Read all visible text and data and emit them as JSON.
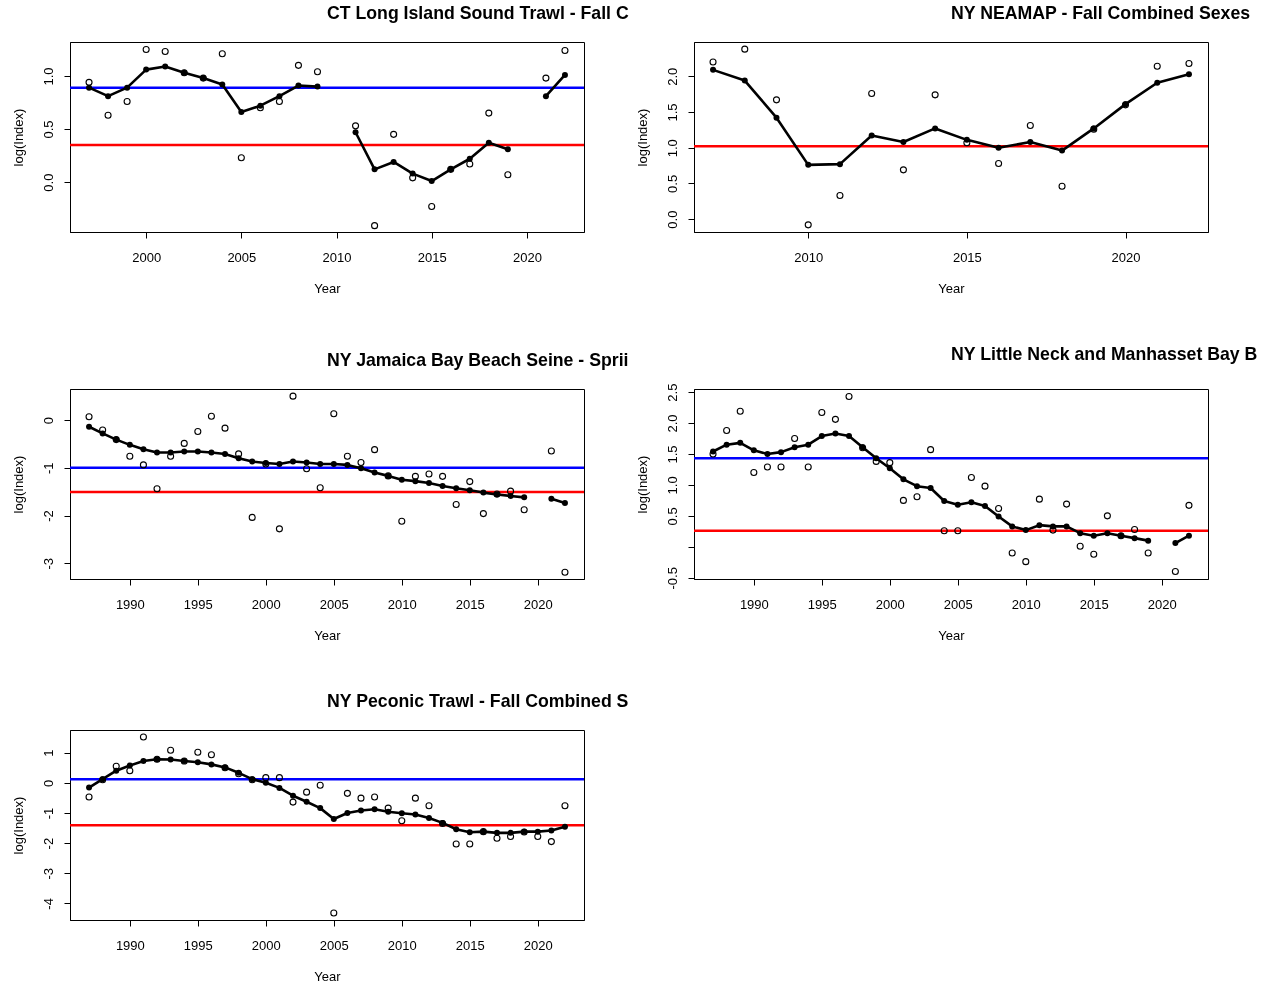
{
  "chart_data": [
    {
      "type": "line",
      "title": "CT Long Island Sound Trawl - Fall C",
      "xlabel": "Year",
      "ylabel": "log(Index)",
      "marker": "circle",
      "x": [
        1997,
        1998,
        1999,
        2000,
        2001,
        2002,
        2003,
        2004,
        2005,
        2006,
        2007,
        2008,
        2009,
        2010,
        2011,
        2012,
        2013,
        2014,
        2015,
        2016,
        2017,
        2018,
        2019,
        2020,
        2021,
        2022
      ],
      "series": [
        {
          "type": "scatter",
          "color": "#000000",
          "values": [
            0.94,
            0.63,
            0.76,
            1.25,
            1.23,
            1.03,
            0.98,
            1.21,
            0.23,
            0.7,
            0.76,
            1.1,
            1.04,
            null,
            0.53,
            -0.41,
            0.45,
            0.04,
            -0.23,
            0.12,
            0.17,
            0.65,
            0.07,
            null,
            0.98,
            1.24
          ]
        },
        {
          "type": "line",
          "color": "#000000",
          "values": [
            0.89,
            0.81,
            0.89,
            1.06,
            1.09,
            1.03,
            0.98,
            0.92,
            0.66,
            0.72,
            0.81,
            0.91,
            0.9,
            null,
            0.47,
            0.12,
            0.19,
            0.08,
            0.01,
            0.12,
            0.22,
            0.37,
            0.31,
            null,
            0.81,
            1.01
          ]
        }
      ],
      "xlim": [
        1996,
        2023
      ],
      "ylim": [
        -0.47,
        1.32
      ],
      "xticks": [
        2000,
        2005,
        2010,
        2015,
        2020
      ],
      "yticks": [
        {
          "value": 0,
          "label": "0.0"
        },
        0.5,
        {
          "value": 1,
          "label": "1.0"
        }
      ],
      "ref_lines": [
        {
          "axis": "y",
          "value": 0.89,
          "color": "#0000ff"
        },
        {
          "axis": "y",
          "value": 0.35,
          "color": "#ff0000"
        }
      ]
    },
    {
      "type": "line",
      "title": "NY NEAMAP - Fall Combined Sexes",
      "xlabel": "Year",
      "ylabel": "log(Index)",
      "marker": "circle",
      "x": [
        2007,
        2008,
        2009,
        2010,
        2011,
        2012,
        2013,
        2014,
        2015,
        2016,
        2017,
        2018,
        2019,
        2020,
        2021,
        2022
      ],
      "series": [
        {
          "type": "scatter",
          "color": "#000000",
          "values": [
            2.2,
            2.38,
            1.67,
            -0.08,
            0.33,
            1.76,
            0.69,
            1.74,
            1.07,
            0.78,
            1.31,
            0.46,
            1.26,
            1.6,
            2.14,
            2.18
          ]
        },
        {
          "type": "line",
          "color": "#000000",
          "values": [
            2.09,
            1.94,
            1.42,
            0.76,
            0.77,
            1.17,
            1.08,
            1.27,
            1.11,
            1.0,
            1.08,
            0.96,
            1.27,
            1.61,
            1.91,
            2.03
          ]
        }
      ],
      "xlim": [
        2006.4,
        2022.6
      ],
      "ylim": [
        -0.18,
        2.48
      ],
      "xticks": [
        2010,
        2015,
        2020
      ],
      "yticks": [
        {
          "value": 0,
          "label": "0.0"
        },
        0.5,
        {
          "value": 1,
          "label": "1.0"
        },
        1.5,
        {
          "value": 2,
          "label": "2.0"
        }
      ],
      "ref_lines": [
        {
          "axis": "y",
          "value": 1.02,
          "color": "#ff0000"
        }
      ]
    },
    {
      "type": "line",
      "title": "NY Jamaica Bay Beach Seine - Sprii",
      "xlabel": "Year",
      "ylabel": "log(Index)",
      "marker": "circle",
      "x": [
        1987,
        1988,
        1989,
        1990,
        1991,
        1992,
        1993,
        1994,
        1995,
        1996,
        1997,
        1998,
        1999,
        2000,
        2001,
        2002,
        2003,
        2004,
        2005,
        2006,
        2007,
        2008,
        2009,
        2010,
        2011,
        2012,
        2013,
        2014,
        2015,
        2016,
        2017,
        2018,
        2019,
        2020,
        2021,
        2022
      ],
      "series": [
        {
          "type": "scatter",
          "color": "#000000",
          "values": [
            0.07,
            -0.21,
            -0.41,
            -0.76,
            -0.94,
            -1.44,
            -0.76,
            -0.49,
            -0.24,
            0.08,
            -0.17,
            -0.71,
            -2.04,
            -0.92,
            -2.28,
            0.5,
            -1.02,
            -1.42,
            0.13,
            -0.76,
            -0.89,
            -0.62,
            -1.17,
            -2.12,
            -1.18,
            -1.13,
            -1.18,
            -1.77,
            -1.29,
            -1.96,
            -1.55,
            -1.49,
            -1.88,
            null,
            -0.65,
            -3.19
          ]
        },
        {
          "type": "line",
          "color": "#000000",
          "values": [
            -0.14,
            -0.28,
            -0.41,
            -0.52,
            -0.61,
            -0.68,
            -0.68,
            -0.66,
            -0.66,
            -0.68,
            -0.71,
            -0.8,
            -0.87,
            -0.9,
            -0.92,
            -0.87,
            -0.89,
            -0.92,
            -0.92,
            -0.94,
            -1.01,
            -1.1,
            -1.17,
            -1.25,
            -1.28,
            -1.32,
            -1.38,
            -1.43,
            -1.47,
            -1.52,
            -1.56,
            -1.59,
            -1.62,
            null,
            -1.65,
            -1.74
          ]
        }
      ],
      "xlim": [
        1985.6,
        2023.4
      ],
      "ylim": [
        -3.33,
        0.65
      ],
      "xticks": [
        1990,
        1995,
        2000,
        2005,
        2010,
        2015,
        2020
      ],
      "yticks": [
        -3,
        -2,
        -1,
        0
      ],
      "ref_lines": [
        {
          "axis": "y",
          "value": -1.0,
          "color": "#0000ff"
        },
        {
          "axis": "y",
          "value": -1.51,
          "color": "#ff0000"
        }
      ]
    },
    {
      "type": "line",
      "title": "NY Little Neck and Manhasset Bay B",
      "xlabel": "Year",
      "ylabel": "log(Index)",
      "marker": "circle",
      "x": [
        1987,
        1988,
        1989,
        1990,
        1991,
        1992,
        1993,
        1994,
        1995,
        1996,
        1997,
        1998,
        1999,
        2000,
        2001,
        2002,
        2003,
        2004,
        2005,
        2006,
        2007,
        2008,
        2009,
        2010,
        2011,
        2012,
        2013,
        2014,
        2015,
        2016,
        2017,
        2018,
        2019,
        2020,
        2021,
        2022
      ],
      "series": [
        {
          "type": "scatter",
          "color": "#000000",
          "values": [
            1.5,
            1.88,
            2.19,
            1.2,
            1.29,
            1.29,
            1.75,
            1.29,
            2.17,
            2.06,
            2.43,
            1.6,
            1.38,
            1.36,
            0.75,
            0.81,
            1.57,
            0.26,
            0.26,
            1.12,
            0.98,
            0.62,
            -0.1,
            -0.24,
            0.77,
            0.27,
            0.69,
            0.01,
            -0.12,
            0.5,
            0.18,
            0.28,
            -0.1,
            null,
            -0.4,
            0.67
          ]
        },
        {
          "type": "line",
          "color": "#000000",
          "values": [
            1.54,
            1.65,
            1.68,
            1.56,
            1.5,
            1.53,
            1.61,
            1.65,
            1.79,
            1.83,
            1.79,
            1.61,
            1.43,
            1.27,
            1.09,
            0.98,
            0.95,
            0.74,
            0.68,
            0.72,
            0.66,
            0.49,
            0.33,
            0.27,
            0.35,
            0.33,
            0.33,
            0.22,
            0.18,
            0.22,
            0.18,
            0.14,
            0.1,
            null,
            0.06,
            0.18
          ]
        }
      ],
      "xlim": [
        1985.6,
        2023.4
      ],
      "ylim": [
        -0.52,
        2.55
      ],
      "xticks": [
        1990,
        1995,
        2000,
        2005,
        2010,
        2015,
        2020
      ],
      "yticks": [
        -0.5,
        {
          "value": 0,
          "label": null
        },
        0.5,
        {
          "value": 1,
          "label": "1.0"
        },
        1.5,
        {
          "value": 2,
          "label": "2.0"
        },
        2.5
      ],
      "ref_lines": [
        {
          "axis": "y",
          "value": 1.43,
          "color": "#0000ff"
        },
        {
          "axis": "y",
          "value": 0.26,
          "color": "#ff0000"
        }
      ]
    },
    {
      "type": "line",
      "title": "NY Peconic Trawl - Fall Combined S",
      "xlabel": "Year",
      "ylabel": "log(Index)",
      "marker": "circle",
      "x": [
        1987,
        1988,
        1989,
        1990,
        1991,
        1992,
        1993,
        1994,
        1995,
        1996,
        1997,
        1998,
        1999,
        2000,
        2001,
        2002,
        2003,
        2004,
        2005,
        2006,
        2007,
        2008,
        2009,
        2010,
        2011,
        2012,
        2013,
        2014,
        2015,
        2016,
        2017,
        2018,
        2019,
        2020,
        2021,
        2022
      ],
      "series": [
        {
          "type": "scatter",
          "color": "#000000",
          "values": [
            -0.47,
            0.1,
            0.55,
            0.4,
            1.52,
            0.78,
            1.08,
            0.72,
            1.01,
            0.93,
            0.5,
            0.3,
            0.1,
            0.17,
            0.17,
            -0.64,
            -0.31,
            -0.08,
            -4.32,
            -0.35,
            -0.51,
            -0.47,
            -0.84,
            -1.26,
            -0.51,
            -0.76,
            -1.35,
            -2.03,
            -2.03,
            -1.62,
            -1.84,
            -1.78,
            -1.63,
            -1.78,
            -1.95,
            -0.76
          ]
        },
        {
          "type": "line",
          "color": "#000000",
          "values": [
            -0.16,
            0.12,
            0.4,
            0.57,
            0.72,
            0.78,
            0.77,
            0.72,
            0.68,
            0.61,
            0.51,
            0.33,
            0.12,
            0.0,
            -0.17,
            -0.43,
            -0.63,
            -0.84,
            -1.2,
            -1.0,
            -0.92,
            -0.88,
            -0.96,
            -1.01,
            -1.05,
            -1.17,
            -1.33,
            -1.54,
            -1.64,
            -1.62,
            -1.66,
            -1.66,
            -1.62,
            -1.62,
            -1.58,
            -1.46
          ]
        }
      ],
      "xlim": [
        1985.6,
        2023.4
      ],
      "ylim": [
        -4.55,
        1.75
      ],
      "xticks": [
        1990,
        1995,
        2000,
        2005,
        2010,
        2015,
        2020
      ],
      "yticks": [
        -4,
        -3,
        -2,
        -1,
        0,
        1
      ],
      "ref_lines": [
        {
          "axis": "y",
          "value": 0.12,
          "color": "#0000ff"
        },
        {
          "axis": "y",
          "value": -1.41,
          "color": "#ff0000"
        }
      ]
    }
  ]
}
